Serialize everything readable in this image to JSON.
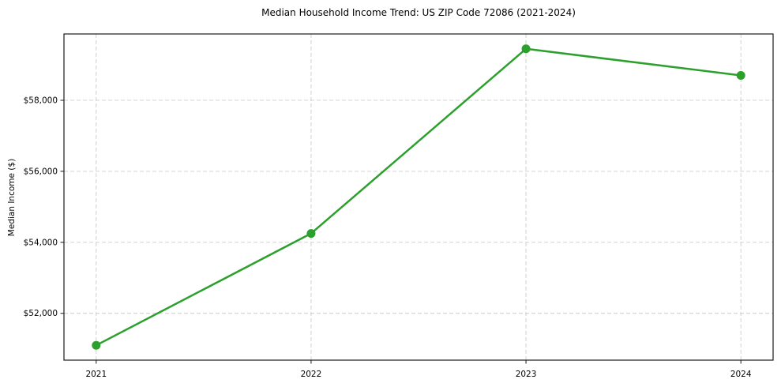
{
  "figure": {
    "background": "#ffffff"
  },
  "chart_data": {
    "type": "line",
    "title": "Median Household Income Trend: US ZIP Code 72086 (2021-2024)",
    "xlabel": "",
    "ylabel": "Median Income ($)",
    "x": [
      2021,
      2022,
      2023,
      2024
    ],
    "x_tick_labels": [
      "2021",
      "2022",
      "2023",
      "2024"
    ],
    "values": [
      51100,
      54250,
      59450,
      58700
    ],
    "y_ticks": [
      52000,
      54000,
      56000,
      58000
    ],
    "y_tick_labels": [
      "$52,000",
      "$54,000",
      "$56,000",
      "$58,000"
    ],
    "xlim": [
      2020.85,
      2024.15
    ],
    "ylim": [
      50682,
      59868
    ],
    "grid": true,
    "grid_style": "dashed",
    "legend": "none",
    "line_color": "#2ca02c",
    "marker": "circle",
    "grid_color": "#cccccc",
    "axes_color": "#1a1a1a",
    "text_color": "#000000"
  }
}
